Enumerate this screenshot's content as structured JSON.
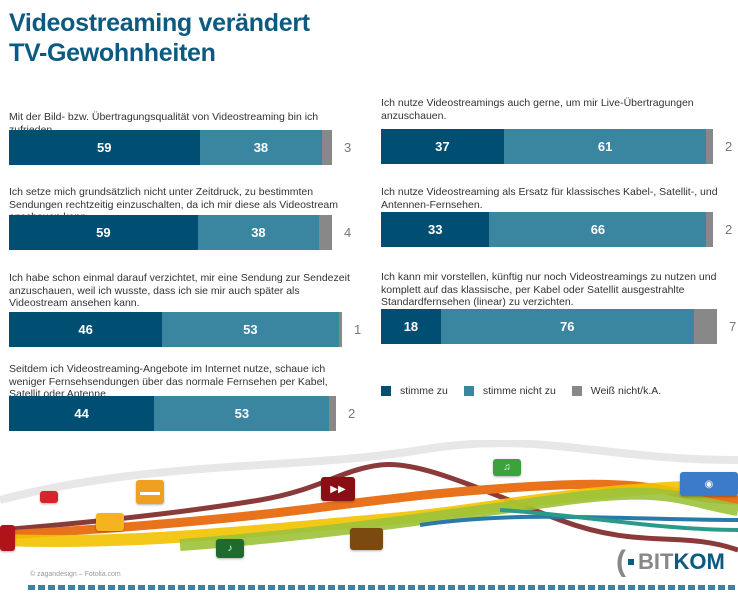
{
  "title_line1": "Videostreaming verändert",
  "title_line2": "TV-Gewohnheiten",
  "chart_data": {
    "type": "bar",
    "orientation": "horizontal-stacked",
    "title": "Videostreaming verändert TV-Gewohnheiten",
    "unit": "percent",
    "series_names": [
      "stimme zu",
      "stimme nicht zu",
      "Weiß nicht/k.A."
    ],
    "colors": [
      "#004f73",
      "#3a85a0",
      "#888888"
    ],
    "items": [
      {
        "question": "Mit der Bild- bzw. Übertragungsqualität von Videostreaming bin ich zufrieden.",
        "values": [
          59,
          38,
          3
        ]
      },
      {
        "question": "Ich setze mich grundsätzlich nicht unter Zeitdruck, zu bestimmten Sendungen rechtzeitig einzuschalten, da ich mir diese als Videostream anschauen kann.",
        "values": [
          59,
          38,
          4
        ]
      },
      {
        "question": "Ich habe schon einmal darauf verzichtet, mir eine  Sendung zur Sendezeit anzuschauen, weil ich wusste, dass ich sie mir auch später als Videostream ansehen kann.",
        "values": [
          46,
          53,
          1
        ]
      },
      {
        "question": "Seitdem ich Videostreaming-Angebote im Internet nutze, schaue ich weniger Fernsehsendungen über das normale Fernsehen per Kabel, Satellit oder Antenne.",
        "values": [
          44,
          53,
          2
        ]
      },
      {
        "question": "Ich nutze Videostreamings auch gerne, um mir Live-Übertragungen anzuschauen.",
        "values": [
          37,
          61,
          2
        ]
      },
      {
        "question": "Ich nutze Videostreaming als Ersatz für klassisches Kabel-, Satellit-, und Antennen-Fernsehen.",
        "values": [
          33,
          66,
          2
        ]
      },
      {
        "question": "Ich kann mir vorstellen, künftig nur noch Videostreamings zu nutzen und komplett auf das klassische, per Kabel oder Satellit ausgestrahlte Standardfernsehen (linear) zu verzichten.",
        "values": [
          18,
          76,
          7
        ]
      }
    ]
  },
  "legend": [
    "stimme zu",
    "stimme nicht zu",
    "Weiß nicht/k.A."
  ],
  "copyright": "© zagandesign – Fotolia.com",
  "logo": {
    "part1": "BIT",
    "part2": "KOM"
  }
}
